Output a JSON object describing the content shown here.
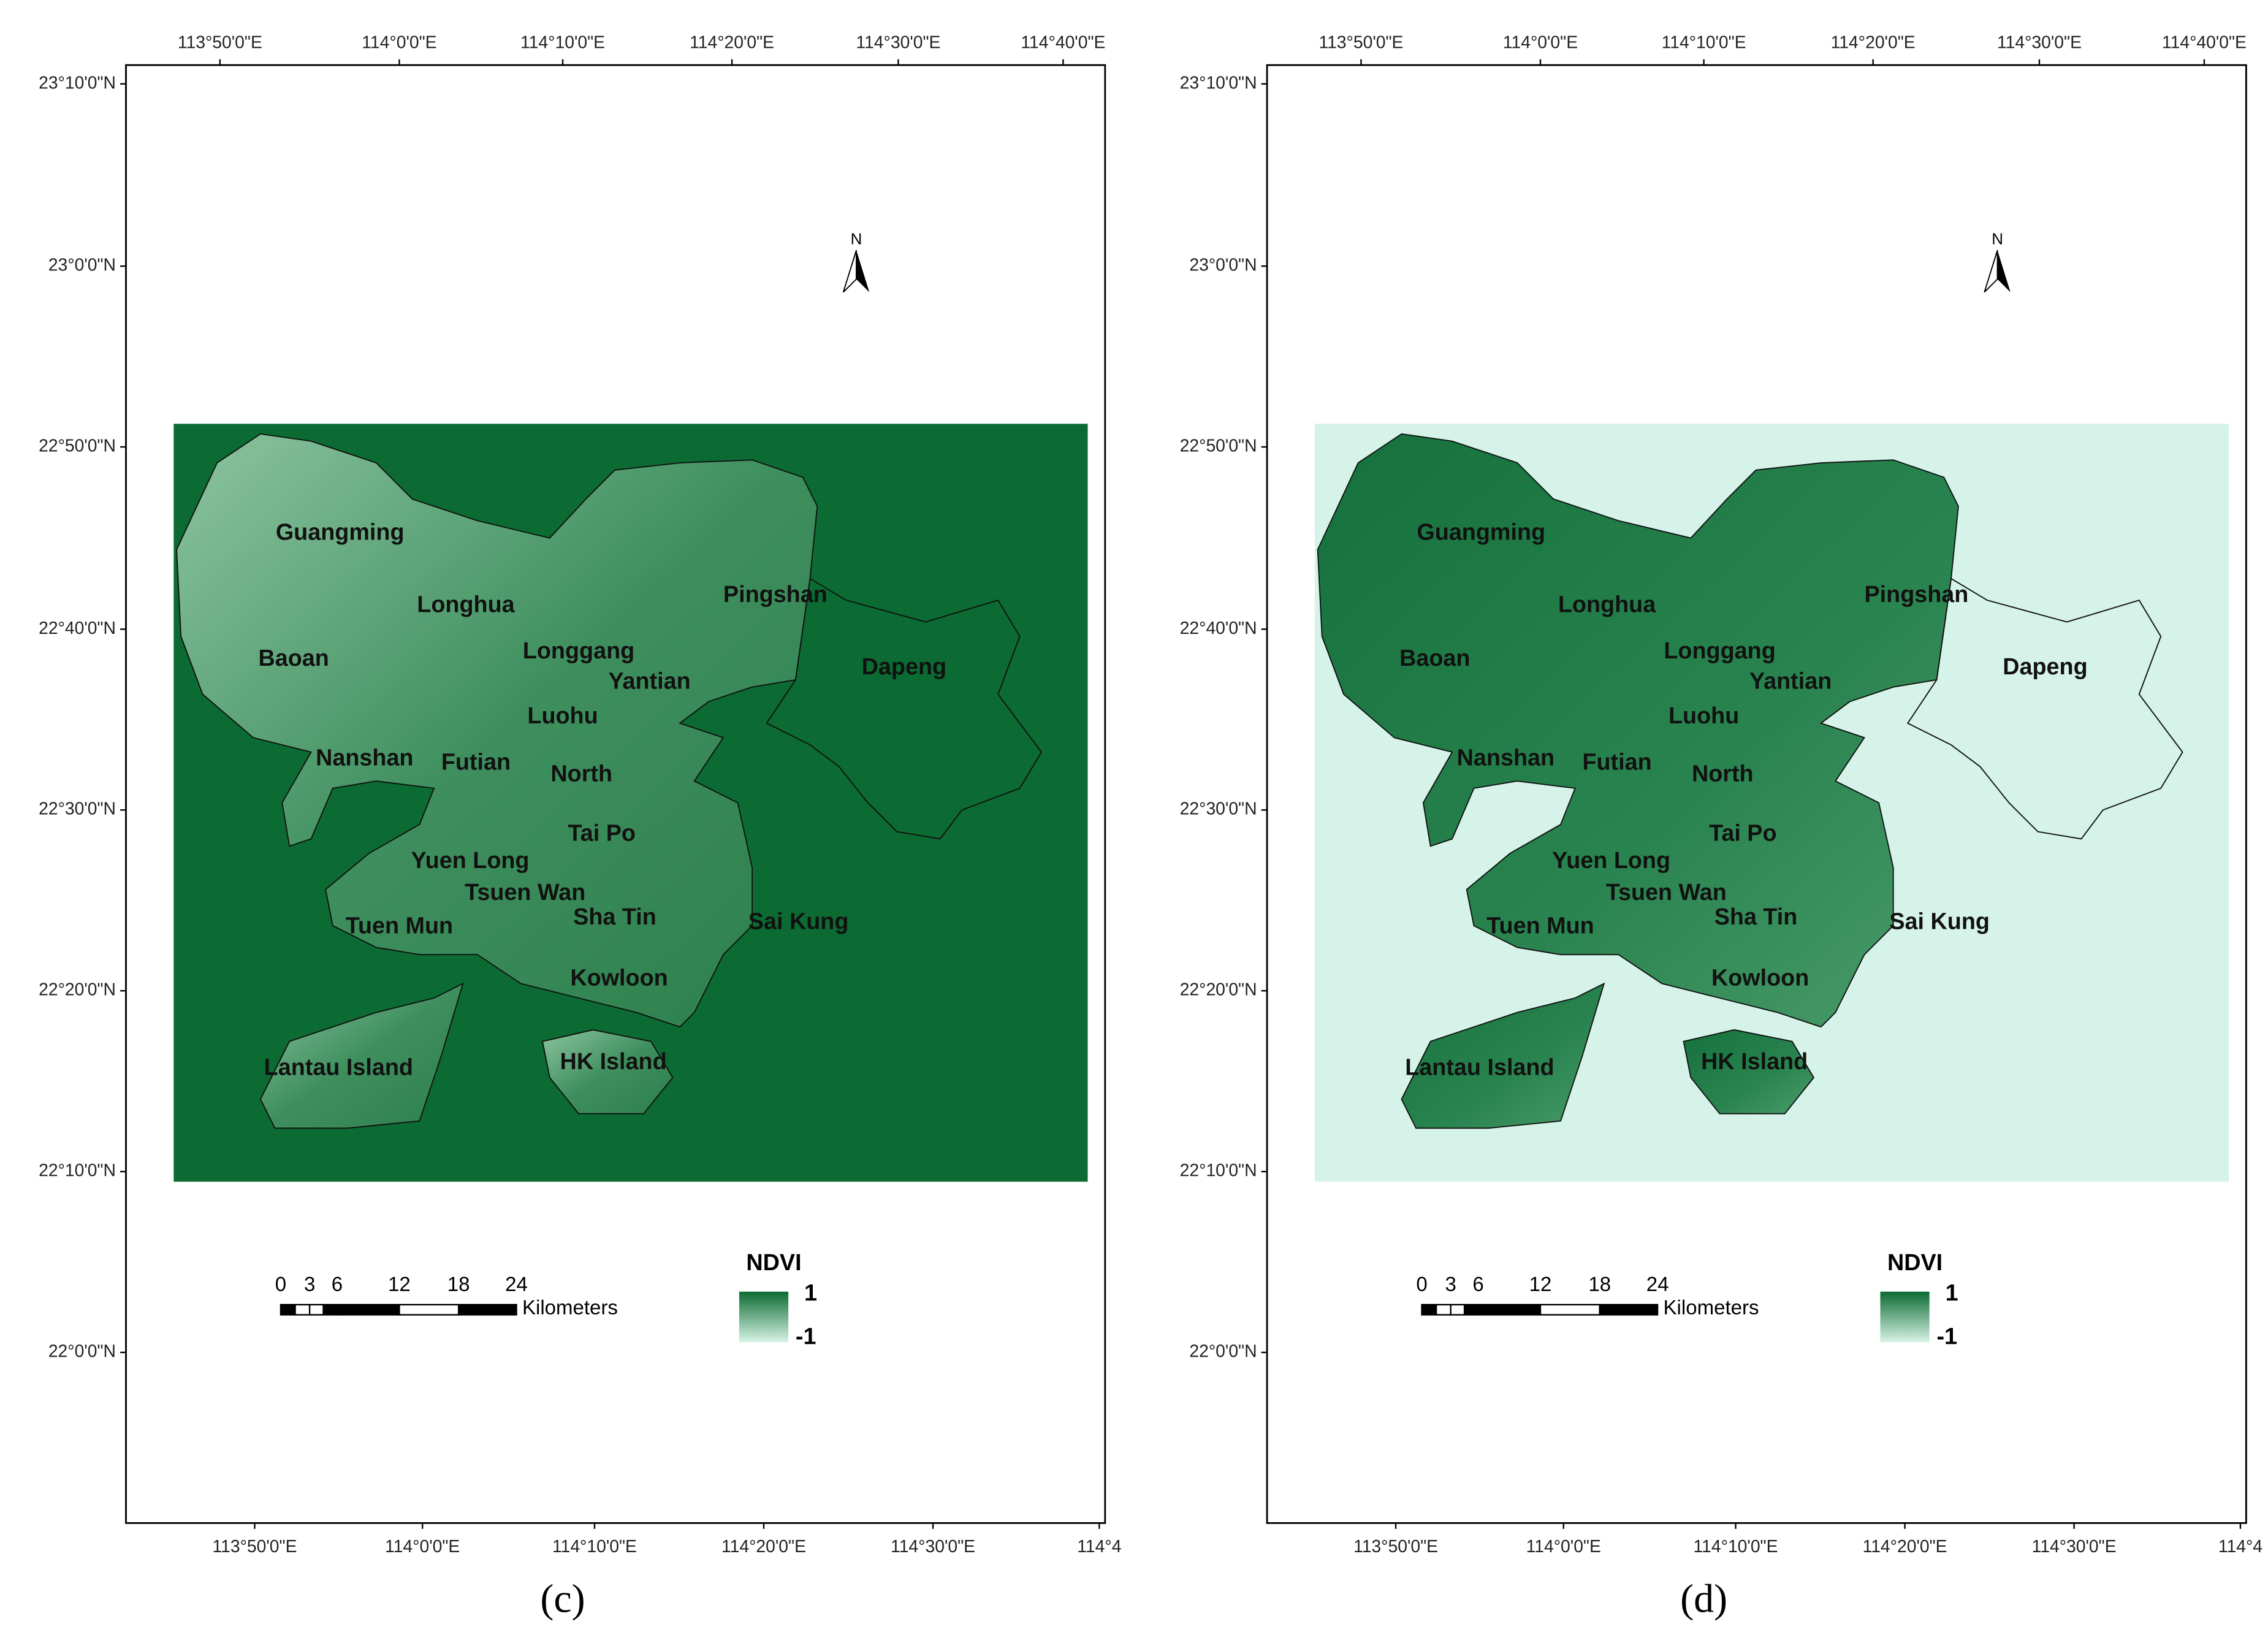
{
  "panels": [
    {
      "label": "(c)",
      "top_ticks": [
        "113°50'0\"E",
        "114°0'0\"E",
        "114°10'0\"E",
        "114°20'0\"E",
        "114°30'0\"E",
        "114°40'0\"E"
      ],
      "bottom_ticks": [
        "113°50'0\"E",
        "114°0'0\"E",
        "114°10'0\"E",
        "114°20'0\"E",
        "114°30'0\"E",
        "114°4"
      ],
      "left_ticks": [
        "23°10'0\"N",
        "23°0'0\"N",
        "22°50'0\"N",
        "22°40'0\"N",
        "22°30'0\"N",
        "22°20'0\"N",
        "22°10'0\"N",
        "22°0'0\"N"
      ],
      "north": "N",
      "places": [
        "Guangming",
        "Longhua",
        "Baoan",
        "Longgang",
        "Pingshan",
        "Yantian",
        "Dapeng",
        "Luohu",
        "Nanshan",
        "Futian",
        "North",
        "Tai Po",
        "Yuen Long",
        "Tsuen Wan",
        "Sha Tin",
        "Sai Kung",
        "Tuen Mun",
        "Kowloon",
        "Lantau Island",
        "HK Island"
      ],
      "scale": {
        "ticks": [
          0,
          3,
          6,
          12,
          18,
          24
        ],
        "unit": "Kilometers"
      },
      "legend": {
        "title": "NDVI",
        "max": 1,
        "min": -1
      }
    },
    {
      "label": "(d)",
      "top_ticks": [
        "113°50'0\"E",
        "114°0'0\"E",
        "114°10'0\"E",
        "114°20'0\"E",
        "114°30'0\"E",
        "114°40'0\"E"
      ],
      "bottom_ticks": [
        "113°50'0\"E",
        "114°0'0\"E",
        "114°10'0\"E",
        "114°20'0\"E",
        "114°30'0\"E",
        "114°4"
      ],
      "left_ticks": [
        "23°10'0\"N",
        "23°0'0\"N",
        "22°50'0\"N",
        "22°40'0\"N",
        "22°30'0\"N",
        "22°20'0\"N",
        "22°10'0\"N",
        "22°0'0\"N"
      ],
      "north": "N",
      "places": [
        "Guangming",
        "Longhua",
        "Baoan",
        "Longgang",
        "Pingshan",
        "Yantian",
        "Dapeng",
        "Luohu",
        "Nanshan",
        "Futian",
        "North",
        "Tai Po",
        "Yuen Long",
        "Tsuen Wan",
        "Sha Tin",
        "Sai Kung",
        "Tuen Mun",
        "Kowloon",
        "Lantau Island",
        "HK Island"
      ],
      "scale": {
        "ticks": [
          0,
          3,
          6,
          12,
          18,
          24
        ],
        "unit": "Kilometers"
      },
      "legend": {
        "title": "NDVI",
        "max": 1,
        "min": -1
      }
    }
  ]
}
